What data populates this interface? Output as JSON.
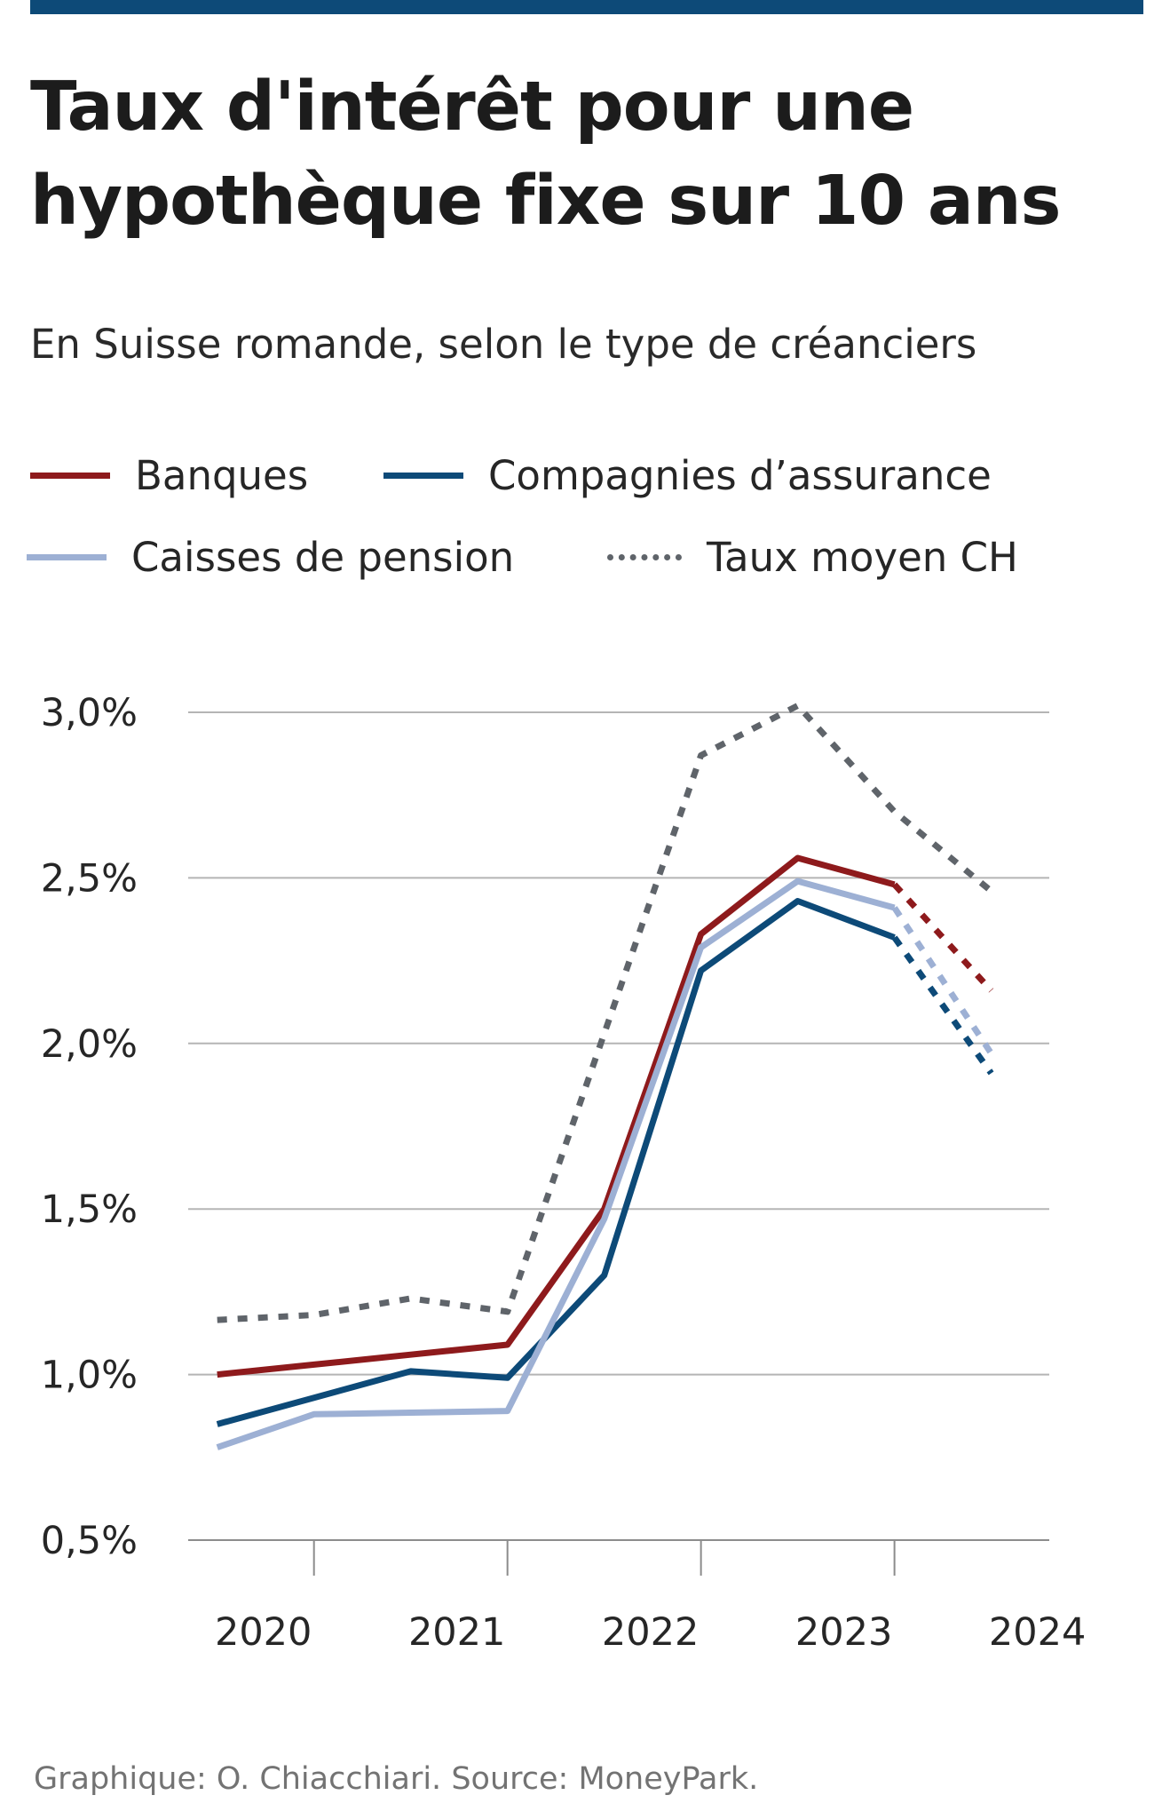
{
  "title": "Taux d'intérêt pour une hypothèque fixe sur 10 ans",
  "subtitle": "En Suisse romande, selon le type de créanciers",
  "legend": {
    "banques": "Banques",
    "assurance": "Compagnies d’assurance",
    "pension": "Caisses de pension",
    "moyen": "Taux moyen CH"
  },
  "footer": "Graphique: O. Chiacchiari. Source: MoneyPark.",
  "colors": {
    "top_bar": "#0d4a78",
    "banques": "#8e1a1c",
    "assurance": "#0d4a78",
    "pension": "#9db0d4",
    "moyen": "#5f646a",
    "grid": "#b5b5b5"
  },
  "chart_data": {
    "type": "line",
    "title": "Taux d'intérêt pour une hypothèque fixe sur 10 ans",
    "subtitle": "En Suisse romande, selon le type de créanciers",
    "xlabel": "",
    "ylabel": "",
    "x": [
      2020.0,
      2020.5,
      2021.0,
      2021.5,
      2022.0,
      2022.5,
      2023.0,
      2023.5,
      2024.0
    ],
    "x_ticks": [
      2020,
      2021,
      2022,
      2023,
      2024
    ],
    "x_tick_labels": [
      "2020",
      "2021",
      "2022",
      "2023",
      "2024"
    ],
    "xlim": [
      2019.85,
      2024.3
    ],
    "y_ticks": [
      0.5,
      1.0,
      1.5,
      2.0,
      2.5,
      3.0
    ],
    "y_tick_labels": [
      "0,5%",
      "1,0%",
      "1,5%",
      "2,0%",
      "2,5%",
      "3,0%"
    ],
    "ylim": [
      0.5,
      3.0
    ],
    "grid": "horizontal",
    "legend_position": "top",
    "forecast_from_index": 7,
    "series": [
      {
        "key": "banques",
        "name": "Banques",
        "style": "solid",
        "values": [
          1.0,
          1.03,
          1.06,
          1.09,
          1.5,
          2.33,
          2.56,
          2.48,
          2.16
        ]
      },
      {
        "key": "assurance",
        "name": "Compagnies d’assurance",
        "style": "solid",
        "values": [
          0.85,
          0.93,
          1.01,
          0.99,
          1.3,
          2.22,
          2.43,
          2.32,
          1.91
        ]
      },
      {
        "key": "pension",
        "name": "Caisses de pension",
        "style": "solid",
        "values": [
          0.78,
          0.88,
          0.885,
          0.89,
          1.47,
          2.29,
          2.49,
          2.41,
          1.97
        ]
      },
      {
        "key": "moyen",
        "name": "Taux moyen CH",
        "style": "dotted",
        "values": [
          1.165,
          1.18,
          1.23,
          1.19,
          2.03,
          2.87,
          3.02,
          2.7,
          2.46
        ]
      }
    ]
  }
}
